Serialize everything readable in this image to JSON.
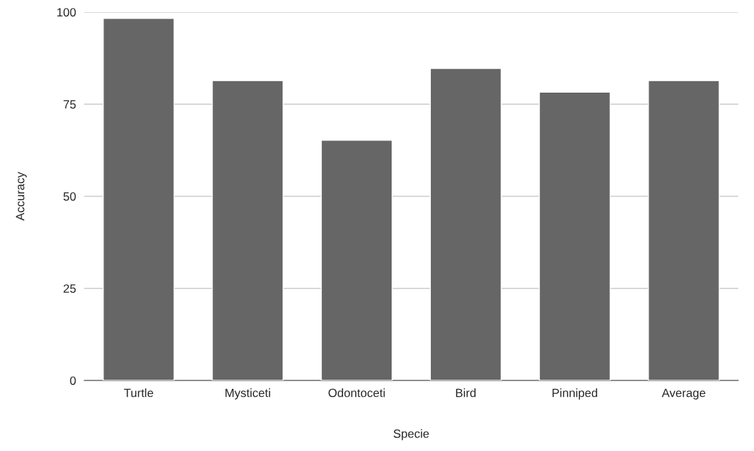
{
  "chart_data": {
    "type": "bar",
    "xlabel": "Specie",
    "ylabel": "Accuracy",
    "categories": [
      "Turtle",
      "Mysticeti",
      "Odontoceti",
      "Bird",
      "Pinniped",
      "Average"
    ],
    "values": [
      98.3,
      81.4,
      65.2,
      84.7,
      78.3,
      81.4
    ],
    "color": "#666666",
    "ylim": [
      0,
      100
    ],
    "yticks": [
      0,
      25,
      50,
      75,
      100
    ],
    "grid": "y"
  }
}
